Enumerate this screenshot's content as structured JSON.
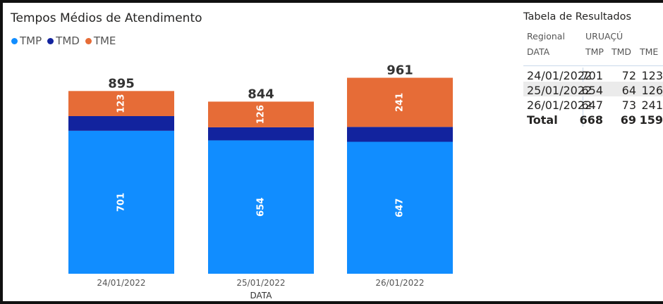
{
  "chart_data": {
    "type": "bar",
    "stacked": true,
    "title": "Tempos Médios de Atendimento",
    "xlabel": "DATA",
    "ylabel": "",
    "categories": [
      "24/01/2022",
      "25/01/2022",
      "26/01/2022"
    ],
    "series": [
      {
        "name": "TMP",
        "color": "#118dff",
        "values": [
          701,
          654,
          647
        ]
      },
      {
        "name": "TMD",
        "color": "#12239e",
        "values": [
          72,
          64,
          73
        ]
      },
      {
        "name": "TME",
        "color": "#e66c37",
        "values": [
          123,
          126,
          241
        ]
      }
    ],
    "totals": [
      "895",
      "844",
      "961"
    ],
    "legend_position": "top-left",
    "grid": false
  },
  "table": {
    "title": "Tabela de Resultados",
    "header_regional_label": "Regional",
    "header_regional_value": "URUAÇÚ",
    "header_date_label": "DATA",
    "columns": [
      "TMP",
      "TMD",
      "TME"
    ],
    "rows": [
      {
        "date": "24/01/2022",
        "tmp": "701",
        "tmd": "72",
        "tme": "123"
      },
      {
        "date": "25/01/2022",
        "tmp": "654",
        "tmd": "64",
        "tme": "126"
      },
      {
        "date": "26/01/2022",
        "tmp": "647",
        "tmd": "73",
        "tme": "241"
      }
    ],
    "total": {
      "label": "Total",
      "tmp": "668",
      "tmd": "69",
      "tme": "159"
    }
  }
}
